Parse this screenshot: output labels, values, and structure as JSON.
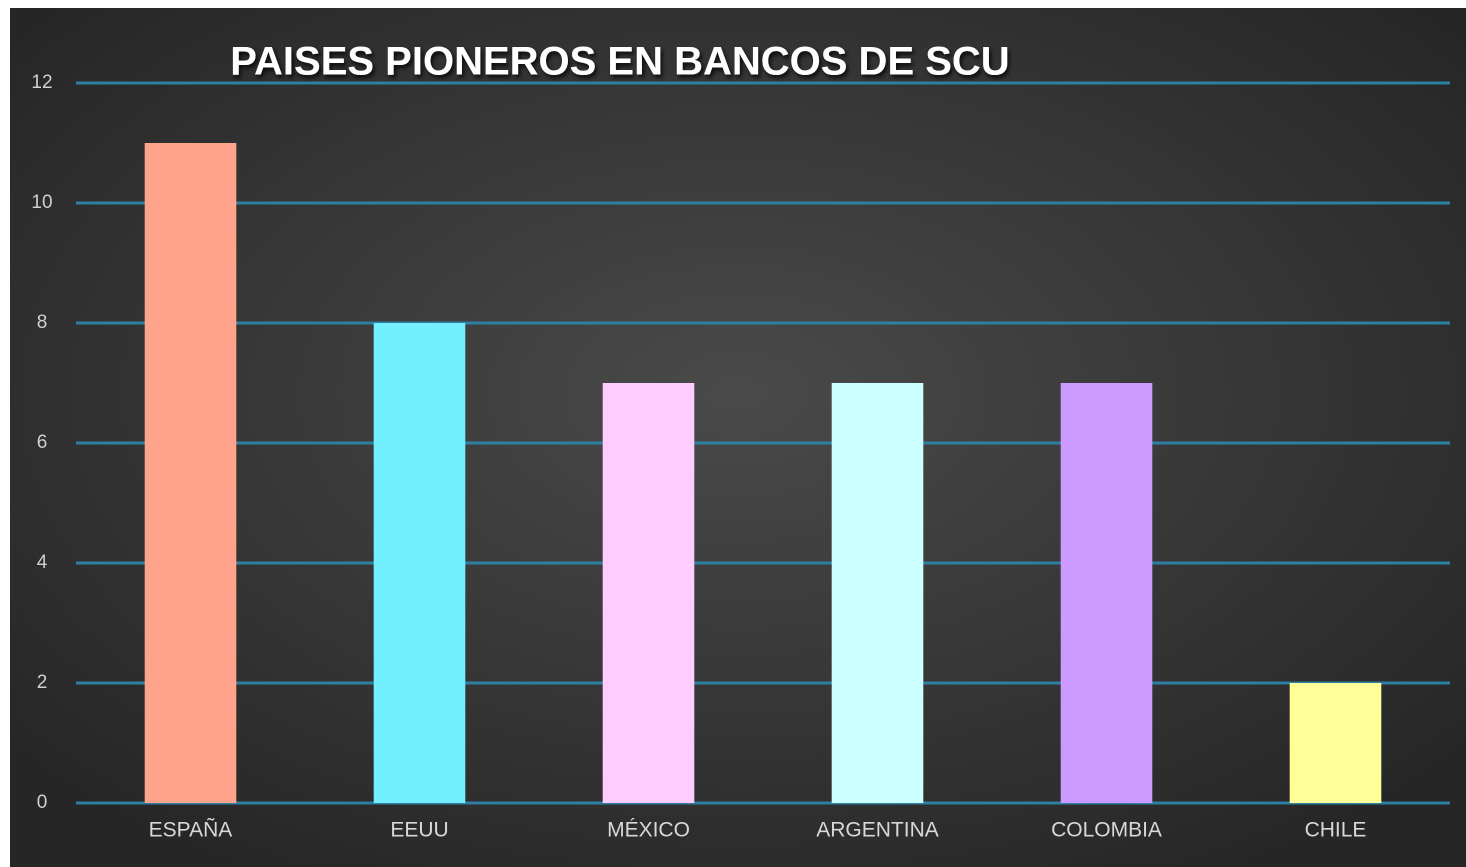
{
  "chart_data": {
    "type": "bar",
    "title": "PAISES PIONEROS EN BANCOS DE  SCU",
    "categories": [
      "ESPAÑA",
      "EEUU",
      "MÉXICO",
      "ARGENTINA",
      "COLOMBIA",
      "CHILE"
    ],
    "values": [
      11,
      8,
      7,
      7,
      7,
      2
    ],
    "colors": [
      "#ffa38a",
      "#73efff",
      "#ffccff",
      "#ccffff",
      "#cc99ff",
      "#ffff99"
    ],
    "ylim": [
      0,
      12
    ],
    "yticks": [
      0,
      2,
      4,
      6,
      8,
      10,
      12
    ],
    "grid": true
  }
}
